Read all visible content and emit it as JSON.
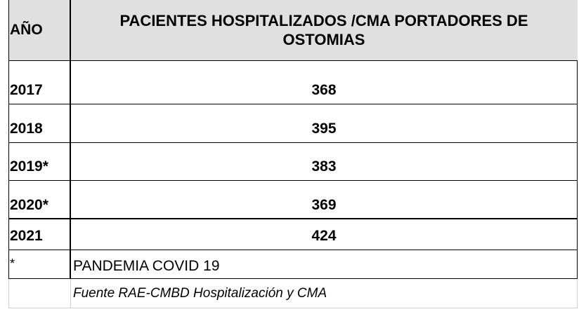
{
  "table": {
    "header": {
      "year": "AÑO",
      "title": "PACIENTES  HOSPITALIZADOS /CMA PORTADORES DE OSTOMIAS"
    },
    "rows": [
      {
        "year": "2017",
        "value": "368"
      },
      {
        "year": "2018",
        "value": "395"
      },
      {
        "year": "2019*",
        "value": "383"
      },
      {
        "year": "2020*",
        "value": "369"
      },
      {
        "year": "2021",
        "value": "424"
      }
    ],
    "note": {
      "mark": "*",
      "text": "PANDEMIA COVID 19"
    },
    "source": "Fuente  RAE-CMBD Hospitalización y CMA"
  }
}
